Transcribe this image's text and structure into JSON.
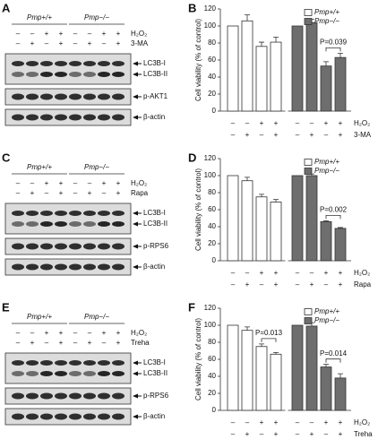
{
  "chart_data": [
    {
      "type": "bar",
      "panel": "B",
      "ylabel": "Cell viability (% of control)",
      "ylim": [
        0,
        120
      ],
      "yticks": [
        0,
        20,
        40,
        60,
        80,
        100,
        120
      ],
      "series": [
        {
          "name": "Pmp+/+",
          "color": "#ffffff",
          "values": [
            100,
            106,
            76,
            81
          ],
          "errors": [
            0,
            7,
            5,
            6
          ]
        },
        {
          "name": "Pmp−/−",
          "color": "#6e6e6e",
          "values": [
            100,
            104,
            53,
            63
          ],
          "errors": [
            0,
            4,
            5,
            5
          ]
        }
      ],
      "rows": [
        {
          "name": "H₂O₂",
          "signs": [
            "–",
            "–",
            "+",
            "+",
            "–",
            "–",
            "+",
            "+"
          ]
        },
        {
          "name": "3-MA",
          "signs": [
            "–",
            "+",
            "–",
            "+",
            "–",
            "+",
            "–",
            "+"
          ]
        }
      ],
      "annotations": [
        "P=0.039"
      ]
    },
    {
      "type": "bar",
      "panel": "D",
      "ylabel": "Cell viability (% of control)",
      "ylim": [
        0,
        120
      ],
      "yticks": [
        0,
        20,
        40,
        60,
        80,
        100,
        120
      ],
      "series": [
        {
          "name": "Pmp+/+",
          "color": "#ffffff",
          "values": [
            100,
            94,
            75,
            69
          ],
          "errors": [
            0,
            4,
            3,
            3
          ]
        },
        {
          "name": "Pmp−/−",
          "color": "#6e6e6e",
          "values": [
            100,
            100,
            46,
            38
          ],
          "errors": [
            0,
            2,
            1,
            1
          ]
        }
      ],
      "rows": [
        {
          "name": "H₂O₂",
          "signs": [
            "–",
            "–",
            "+",
            "+",
            "–",
            "–",
            "+",
            "+"
          ]
        },
        {
          "name": "Rapa",
          "signs": [
            "–",
            "+",
            "–",
            "+",
            "–",
            "+",
            "–",
            "+"
          ]
        }
      ],
      "annotations": [
        "P=0.002"
      ]
    },
    {
      "type": "bar",
      "panel": "F",
      "ylabel": "Cell viability (% of control)",
      "ylim": [
        0,
        120
      ],
      "yticks": [
        0,
        20,
        40,
        60,
        80,
        100,
        120
      ],
      "series": [
        {
          "name": "Pmp+/+",
          "color": "#ffffff",
          "values": [
            100,
            94,
            75,
            66
          ],
          "errors": [
            0,
            4,
            3,
            2
          ]
        },
        {
          "name": "Pmp−/−",
          "color": "#6e6e6e",
          "values": [
            100,
            99,
            51,
            38
          ],
          "errors": [
            0,
            4,
            3,
            5
          ]
        }
      ],
      "rows": [
        {
          "name": "H₂O₂",
          "signs": [
            "–",
            "–",
            "+",
            "+",
            "–",
            "–",
            "+",
            "+"
          ]
        },
        {
          "name": "Treha",
          "signs": [
            "–",
            "+",
            "–",
            "+",
            "–",
            "+",
            "–",
            "+"
          ]
        }
      ],
      "annotations": [
        "P=0.013",
        "P=0.014"
      ]
    }
  ],
  "blots": [
    {
      "panel": "A",
      "groups": [
        "Pmp+/+",
        "Pmp−/−"
      ],
      "treatments": [
        {
          "name": "H₂O₂",
          "signs": [
            "–",
            "–",
            "+",
            "+",
            "–",
            "–",
            "+",
            "+"
          ]
        },
        {
          "name": "3-MA",
          "signs": [
            "–",
            "+",
            "–",
            "+",
            "–",
            "+",
            "–",
            "+"
          ]
        }
      ],
      "boxes": [
        [
          "LC3B-I",
          "LC3B-II"
        ],
        [
          "p-AKT1"
        ],
        [
          "β-actin"
        ]
      ]
    },
    {
      "panel": "C",
      "groups": [
        "Pmp+/+",
        "Pmp−/−"
      ],
      "treatments": [
        {
          "name": "H₂O₂",
          "signs": [
            "–",
            "–",
            "+",
            "+",
            "–",
            "–",
            "+",
            "+"
          ]
        },
        {
          "name": "Rapa",
          "signs": [
            "–",
            "+",
            "–",
            "+",
            "–",
            "+",
            "–",
            "+"
          ]
        }
      ],
      "boxes": [
        [
          "LC3B-I",
          "LC3B-II"
        ],
        [
          "p-RPS6"
        ],
        [
          "β-actin"
        ]
      ]
    },
    {
      "panel": "E",
      "groups": [
        "Pmp+/+",
        "Pmp−/−"
      ],
      "treatments": [
        {
          "name": "H₂O₂",
          "signs": [
            "–",
            "–",
            "+",
            "+",
            "–",
            "–",
            "+",
            "+"
          ]
        },
        {
          "name": "Treha",
          "signs": [
            "–",
            "+",
            "–",
            "+",
            "–",
            "+",
            "–",
            "+"
          ]
        }
      ],
      "boxes": [
        [
          "LC3B-I",
          "LC3B-II"
        ],
        [
          "p-RPS6"
        ],
        [
          "β-actin"
        ]
      ]
    }
  ]
}
